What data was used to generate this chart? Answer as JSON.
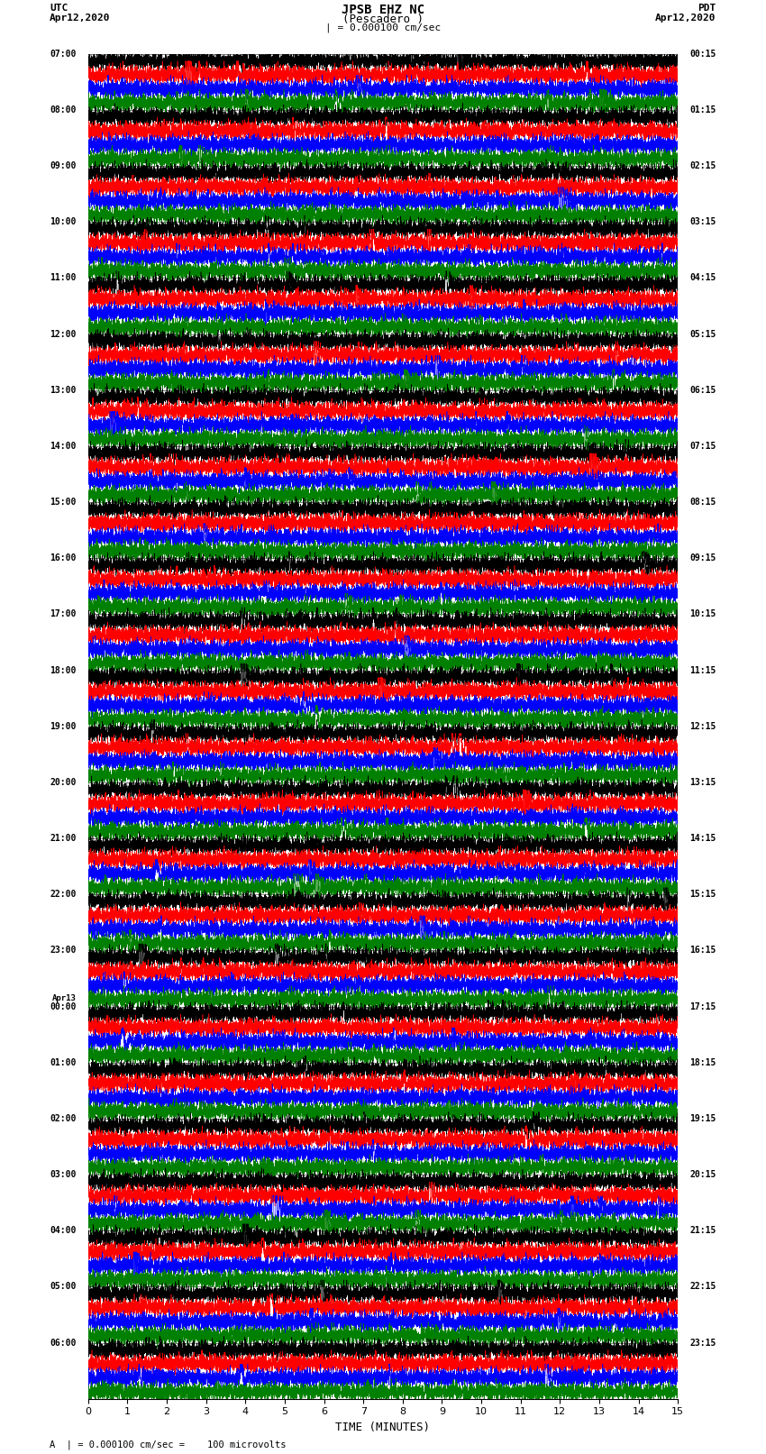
{
  "title_line1": "JPSB EHZ NC",
  "title_line2": "(Pescadero )",
  "scale_label": "| = 0.000100 cm/sec",
  "left_label": "UTC",
  "left_date": "Apr12,2020",
  "right_label": "PDT",
  "right_date": "Apr12,2020",
  "xlabel": "TIME (MINUTES)",
  "bottom_note": "A  | = 0.000100 cm/sec =    100 microvolts",
  "left_times": [
    "07:00",
    "08:00",
    "09:00",
    "10:00",
    "11:00",
    "12:00",
    "13:00",
    "14:00",
    "15:00",
    "16:00",
    "17:00",
    "18:00",
    "19:00",
    "20:00",
    "21:00",
    "22:00",
    "23:00",
    "Apr13",
    "00:00",
    "01:00",
    "02:00",
    "03:00",
    "04:00",
    "05:00",
    "06:00"
  ],
  "right_times": [
    "00:15",
    "01:15",
    "02:15",
    "03:15",
    "04:15",
    "05:15",
    "06:15",
    "07:15",
    "08:15",
    "09:15",
    "10:15",
    "11:15",
    "12:15",
    "13:15",
    "14:15",
    "15:15",
    "16:15",
    "17:15",
    "18:15",
    "19:15",
    "20:15",
    "21:15",
    "22:15",
    "23:15"
  ],
  "trace_colors": [
    "black",
    "red",
    "blue",
    "green"
  ],
  "bg_color": "#ffffff",
  "n_hours": 24,
  "traces_per_hour": 4,
  "minutes": 15,
  "samples_per_trace": 9000,
  "base_noise_amp": 0.28,
  "seed": 12345
}
